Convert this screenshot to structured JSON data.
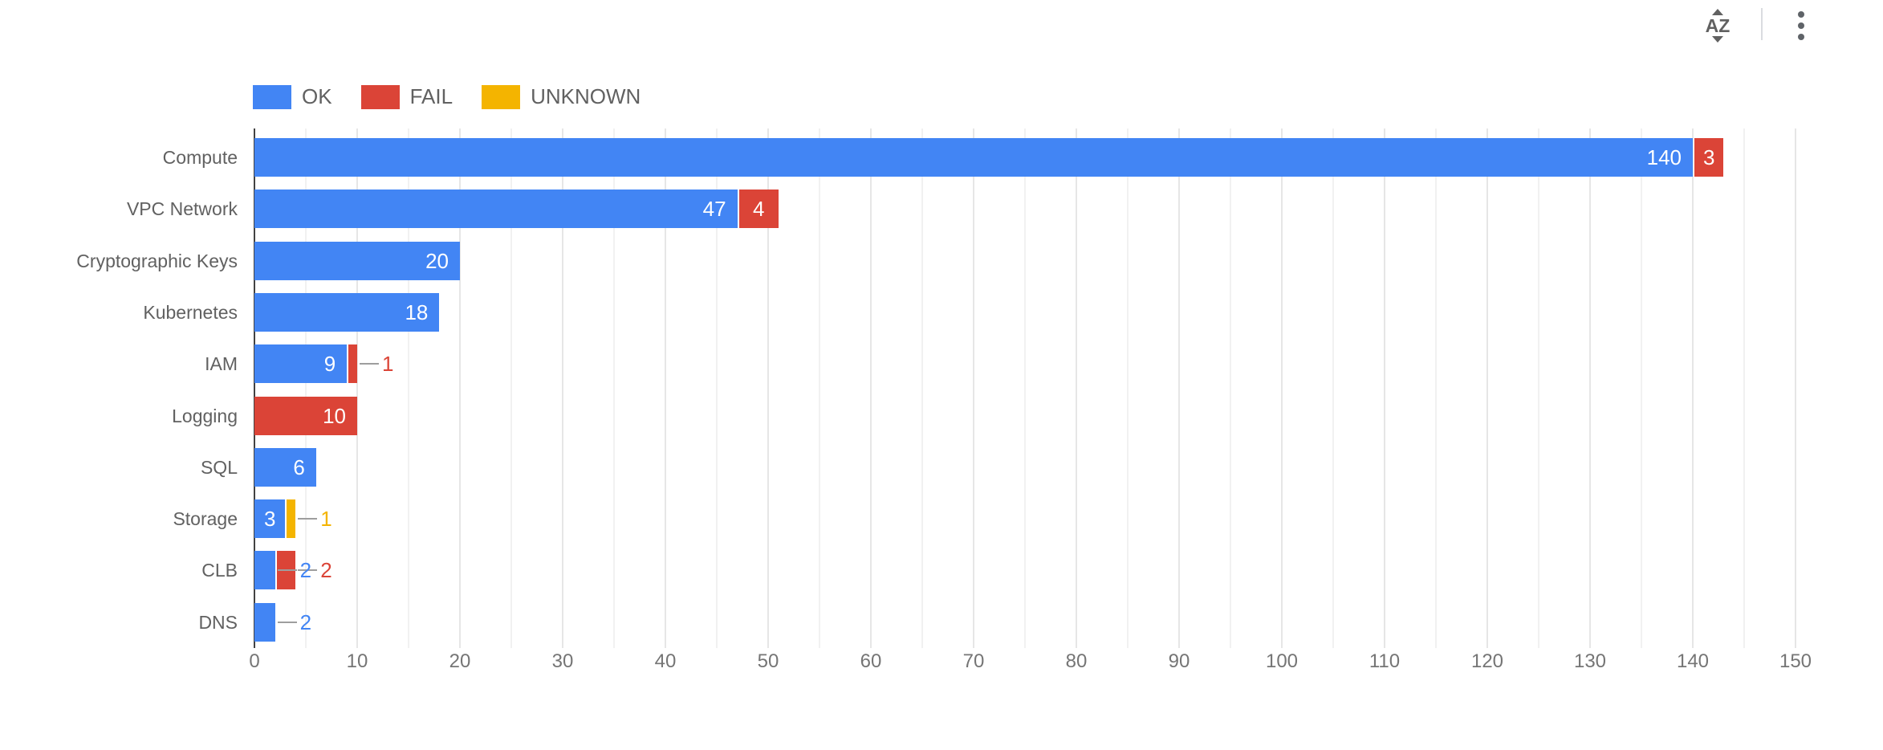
{
  "toolbar": {
    "sort_label": "AZ"
  },
  "legend": [
    {
      "label": "OK",
      "color": "#4285f4"
    },
    {
      "label": "FAIL",
      "color": "#db4437"
    },
    {
      "label": "UNKNOWN",
      "color": "#f4b400"
    }
  ],
  "colors": {
    "ok": "#4285f4",
    "fail": "#db4437",
    "unknown": "#f4b400",
    "label_gray": "#616161",
    "axis_gray": "#757575",
    "leader_line": "#9e9e9e"
  },
  "chart_data": {
    "type": "bar",
    "orientation": "horizontal",
    "stacked": true,
    "title": "",
    "xlabel": "",
    "ylabel": "",
    "categories": [
      "Compute",
      "VPC Network",
      "Cryptographic Keys",
      "Kubernetes",
      "IAM",
      "Logging",
      "SQL",
      "Storage",
      "CLB",
      "DNS"
    ],
    "series": [
      {
        "name": "OK",
        "color": "#4285f4",
        "values": [
          140,
          47,
          20,
          18,
          9,
          0,
          6,
          3,
          2,
          2
        ]
      },
      {
        "name": "FAIL",
        "color": "#db4437",
        "values": [
          3,
          4,
          0,
          0,
          1,
          10,
          0,
          0,
          2,
          0
        ]
      },
      {
        "name": "UNKNOWN",
        "color": "#f4b400",
        "values": [
          0,
          0,
          0,
          0,
          0,
          0,
          0,
          1,
          0,
          0
        ]
      }
    ],
    "xlim": [
      0,
      150
    ],
    "x_ticks": [
      0,
      10,
      20,
      30,
      40,
      50,
      60,
      70,
      80,
      90,
      100,
      110,
      120,
      130,
      140,
      150
    ],
    "minor_grid_step": 5,
    "grid": true,
    "legend_position": "top"
  }
}
